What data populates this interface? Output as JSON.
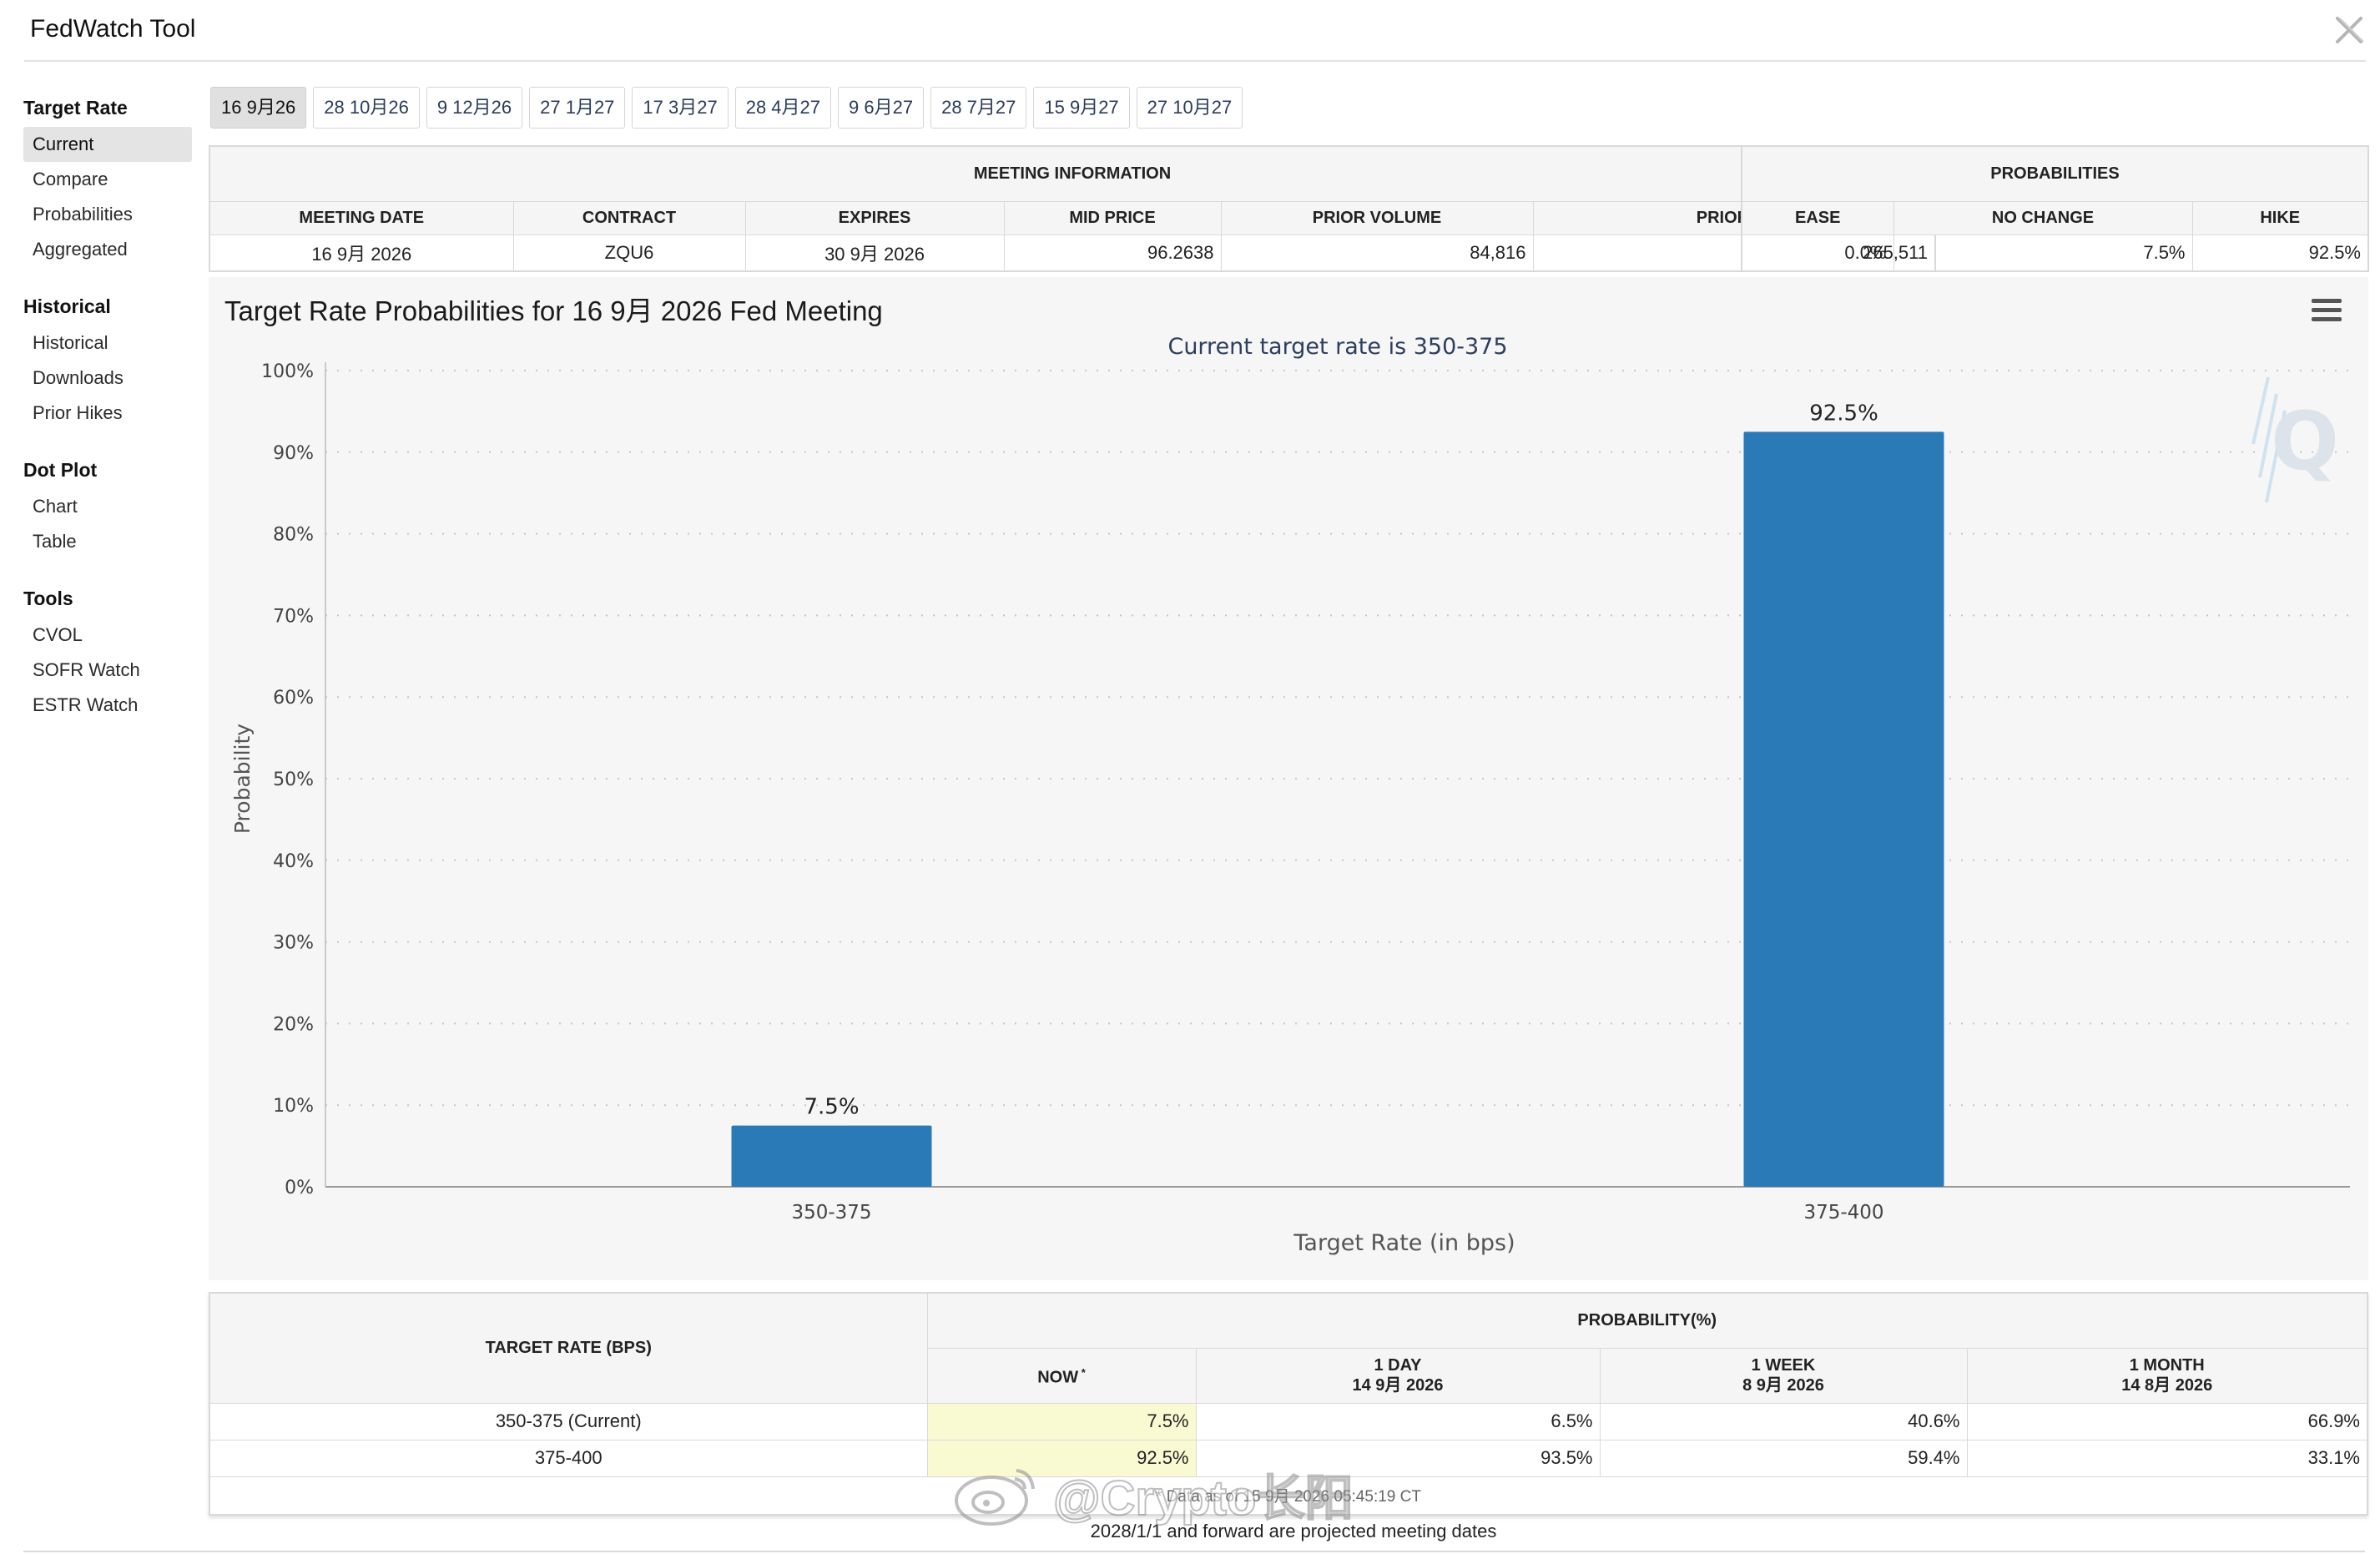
{
  "app": {
    "title": "FedWatch Tool"
  },
  "sidebar": {
    "groups": [
      {
        "heading": "Target Rate",
        "items": [
          "Current",
          "Compare",
          "Probabilities",
          "Aggregated"
        ],
        "active": 0
      },
      {
        "heading": "Historical",
        "items": [
          "Historical",
          "Downloads",
          "Prior Hikes"
        ]
      },
      {
        "heading": "Dot Plot",
        "items": [
          "Chart",
          "Table"
        ]
      },
      {
        "heading": "Tools",
        "items": [
          "CVOL",
          "SOFR Watch",
          "ESTR Watch"
        ]
      }
    ]
  },
  "tabs": [
    "16 9月26",
    "28 10月26",
    "9 12月26",
    "27 1月27",
    "17 3月27",
    "28 4月27",
    "9 6月27",
    "28 7月27",
    "15 9月27",
    "27 10月27"
  ],
  "meeting_info": {
    "caption": "MEETING INFORMATION",
    "headers": [
      "MEETING DATE",
      "CONTRACT",
      "EXPIRES",
      "MID PRICE",
      "PRIOR VOLUME",
      "PRIOR OI"
    ],
    "row": [
      "16 9月 2026",
      "ZQU6",
      "30 9月 2026",
      "96.2638",
      "84,816",
      "265,511"
    ]
  },
  "probabilities": {
    "caption": "PROBABILITIES",
    "headers": [
      "EASE",
      "NO CHANGE",
      "HIKE"
    ],
    "row": [
      "0.0%",
      "7.5%",
      "92.5%"
    ]
  },
  "chart": {
    "title": "Target Rate Probabilities for 16 9月 2026 Fed Meeting",
    "subtitle": "Current target rate is 350-375",
    "watermark_letter": "Q"
  },
  "chart_data": {
    "type": "bar",
    "categories": [
      "350-375",
      "375-400"
    ],
    "values": [
      7.5,
      92.5
    ],
    "data_labels": [
      "7.5%",
      "92.5%"
    ],
    "title": "Target Rate Probabilities for 16 9月 2026 Fed Meeting",
    "subtitle": "Current target rate is 350-375",
    "xlabel": "Target Rate (in bps)",
    "ylabel": "Probability",
    "ylim": [
      0,
      100
    ],
    "yticks": [
      "0%",
      "10%",
      "20%",
      "30%",
      "40%",
      "50%",
      "60%",
      "70%",
      "80%",
      "90%",
      "100%"
    ],
    "grid": true,
    "bar_color": "#2a7ab8"
  },
  "prob_table": {
    "col_rate": "TARGET RATE (BPS)",
    "col_prob": "PROBABILITY(%)",
    "sub_headers": [
      {
        "label": "NOW",
        "sup": "*",
        "date": ""
      },
      {
        "label": "1 DAY",
        "date": "14 9月 2026"
      },
      {
        "label": "1 WEEK",
        "date": "8 9月 2026"
      },
      {
        "label": "1 MONTH",
        "date": "14 8月 2026"
      }
    ],
    "rows": [
      [
        "350-375 (Current)",
        "7.5%",
        "6.5%",
        "40.6%",
        "66.9%"
      ],
      [
        "375-400",
        "92.5%",
        "93.5%",
        "59.4%",
        "33.1%"
      ]
    ],
    "note": "* Data as of 15 9月 2026 05:45:19 CT"
  },
  "footer": {
    "note": "2028/1/1 and forward are projected meeting dates"
  },
  "watermark": {
    "text": "@Crypto长阳"
  }
}
